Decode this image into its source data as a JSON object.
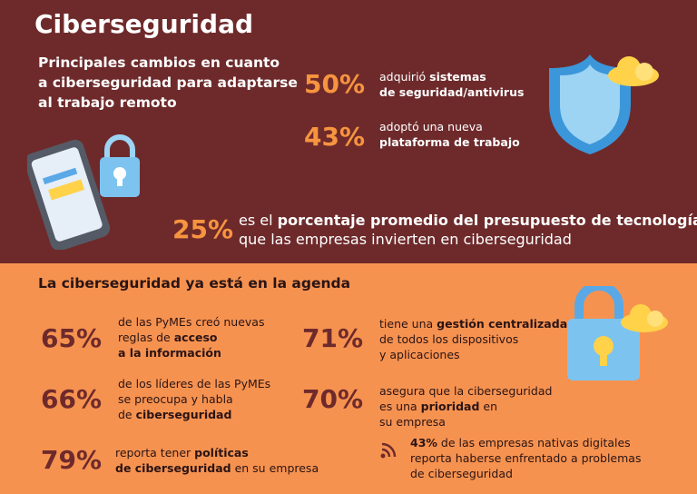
{
  "title": "Ciberseguridad",
  "intro": {
    "heading": [
      "Principales cambios en cuanto",
      "a ciberseguridad para adaptarse",
      "al trabajo remoto"
    ],
    "stats": [
      {
        "percent": "50%",
        "lines": [
          [
            {
              "text": "adquirió "
            },
            {
              "text": "sistemas",
              "bold": true
            }
          ],
          [
            {
              "text": "de seguridad/antivirus",
              "bold": true
            }
          ]
        ]
      },
      {
        "percent": "43%",
        "lines": [
          [
            {
              "text": "adoptó una nueva"
            }
          ],
          [
            {
              "text": "plataforma de trabajo",
              "bold": true
            }
          ]
        ]
      }
    ],
    "highlight": {
      "percent": "25%",
      "lines": [
        [
          {
            "text": "es el "
          },
          {
            "text": "porcentaje promedio del presupuesto de tecnología",
            "bold": true
          }
        ],
        [
          {
            "text": "que las empresas invierten en ciberseguridad"
          }
        ]
      ]
    }
  },
  "agenda": {
    "heading": "La ciberseguridad ya está en la agenda",
    "stats": [
      {
        "percent": "65%",
        "lines": [
          [
            {
              "text": "de las PyMEs creó nuevas"
            }
          ],
          [
            {
              "text": "reglas de "
            },
            {
              "text": "acceso",
              "bold": true
            }
          ],
          [
            {
              "text": "a la información",
              "bold": true
            }
          ]
        ]
      },
      {
        "percent": "66%",
        "lines": [
          [
            {
              "text": "de los líderes de las PyMEs"
            }
          ],
          [
            {
              "text": "se preocupa y habla"
            }
          ],
          [
            {
              "text": "de "
            },
            {
              "text": "ciberseguridad",
              "bold": true
            }
          ]
        ]
      },
      {
        "percent": "79%",
        "lines": [
          [
            {
              "text": "reporta tener "
            },
            {
              "text": "políticas",
              "bold": true
            }
          ],
          [
            {
              "text": "de ciberseguridad",
              "bold": true
            },
            {
              "text": " en su empresa"
            }
          ]
        ]
      },
      {
        "percent": "71%",
        "lines": [
          [
            {
              "text": "tiene una "
            },
            {
              "text": "gestión centralizada",
              "bold": true
            }
          ],
          [
            {
              "text": "de todos los dispositivos"
            }
          ],
          [
            {
              "text": "y aplicaciones"
            }
          ]
        ]
      },
      {
        "percent": "70%",
        "lines": [
          [
            {
              "text": "asegura que la ciberseguridad"
            }
          ],
          [
            {
              "text": "es una "
            },
            {
              "text": "prioridad",
              "bold": true
            },
            {
              "text": " en"
            }
          ],
          [
            {
              "text": "su empresa"
            }
          ]
        ]
      }
    ],
    "note": {
      "lines": [
        [
          {
            "text": "43%",
            "bold": true
          },
          {
            "text": " de las empresas nativas digitales"
          }
        ],
        [
          {
            "text": "reporta haberse enfrentado a problemas"
          }
        ],
        [
          {
            "text": "de ciberseguridad"
          }
        ]
      ]
    }
  }
}
